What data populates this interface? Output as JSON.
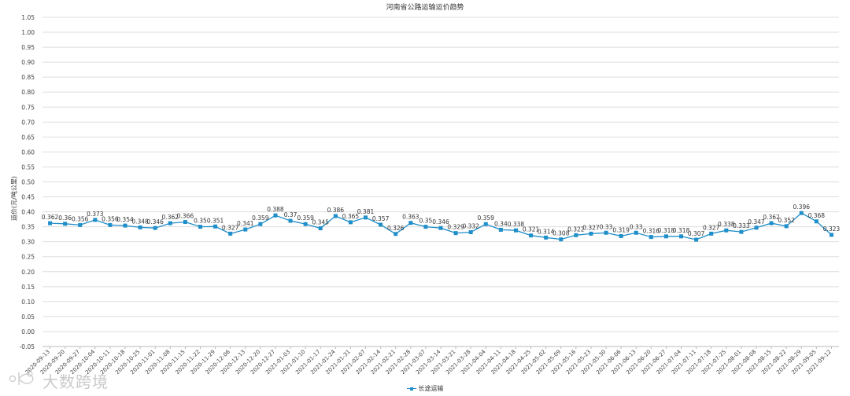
{
  "chart_data": {
    "type": "line",
    "title": "河南省公路运输运价趋势",
    "ylabel": "运价(元/吨公里)",
    "xlabel": "",
    "ylim": [
      -0.05,
      1.05
    ],
    "yticks": [
      "-0.05",
      "0.00",
      "0.05",
      "0.10",
      "0.15",
      "0.20",
      "0.25",
      "0.30",
      "0.35",
      "0.40",
      "0.45",
      "0.50",
      "0.55",
      "0.60",
      "0.65",
      "0.70",
      "0.75",
      "0.80",
      "0.85",
      "0.90",
      "0.95",
      "1.00",
      "1.05"
    ],
    "grid": true,
    "legend_position": "bottom",
    "categories": [
      "2020-09-13",
      "2020-09-20",
      "2020-09-27",
      "2020-10-04",
      "2020-10-11",
      "2020-10-18",
      "2020-10-25",
      "2020-11-01",
      "2020-11-08",
      "2020-11-15",
      "2020-11-22",
      "2020-11-29",
      "2020-12-06",
      "2020-12-13",
      "2020-12-20",
      "2020-12-27",
      "2021-01-03",
      "2021-01-10",
      "2021-01-17",
      "2021-01-24",
      "2021-01-31",
      "2021-02-07",
      "2021-02-14",
      "2021-02-21",
      "2021-02-28",
      "2021-03-07",
      "2021-03-14",
      "2021-03-21",
      "2021-03-28",
      "2021-04-04",
      "2021-04-11",
      "2021-04-18",
      "2021-04-25",
      "2021-05-02",
      "2021-05-09",
      "2021-05-16",
      "2021-05-23",
      "2021-05-30",
      "2021-06-06",
      "2021-06-13",
      "2021-06-20",
      "2021-06-27",
      "2021-07-04",
      "2021-07-11",
      "2021-07-18",
      "2021-07-25",
      "2021-08-01",
      "2021-08-08",
      "2021-08-15",
      "2021-08-22",
      "2021-08-29",
      "2021-09-05",
      "2021-09-12"
    ],
    "series": [
      {
        "name": "长途运输",
        "color": "#1f8ec9",
        "values": [
          0.362,
          0.36,
          0.356,
          0.373,
          0.356,
          0.354,
          0.348,
          0.346,
          0.362,
          0.366,
          0.35,
          0.351,
          0.327,
          0.341,
          0.359,
          0.388,
          0.37,
          0.359,
          0.345,
          0.386,
          0.365,
          0.381,
          0.357,
          0.326,
          0.363,
          0.35,
          0.346,
          0.329,
          0.332,
          0.359,
          0.34,
          0.338,
          0.321,
          0.314,
          0.308,
          0.322,
          0.327,
          0.33,
          0.319,
          0.33,
          0.316,
          0.318,
          0.318,
          0.307,
          0.327,
          0.338,
          0.333,
          0.347,
          0.362,
          0.352,
          0.396,
          0.368,
          0.323
        ],
        "labels": [
          "0.362",
          "0.36",
          "0.356",
          "0.373",
          "0.356",
          "0.354",
          "0.348",
          "0.346",
          "0.362",
          "0.366",
          "0.35",
          "0.351",
          "0.327",
          "0.341",
          "0.359",
          "0.388",
          "0.37",
          "0.359",
          "0.345",
          "0.386",
          "0.365",
          "0.381",
          "0.357",
          "0.326",
          "0.363",
          "0.35",
          "0.346",
          "0.329",
          "0.332",
          "0.359",
          "0.34",
          "0.338",
          "0.321",
          "0.314",
          "0.308",
          "0.322",
          "0.327",
          "0.33",
          "0.319",
          "0.33",
          "0.316",
          "0.318",
          "0.318",
          "0.307",
          "0.327",
          "0.338",
          "0.333",
          "0.347",
          "0.362",
          "0.352",
          "0.396",
          "0.368",
          "0.323"
        ]
      }
    ]
  },
  "watermark": {
    "text": "大数跨境"
  }
}
